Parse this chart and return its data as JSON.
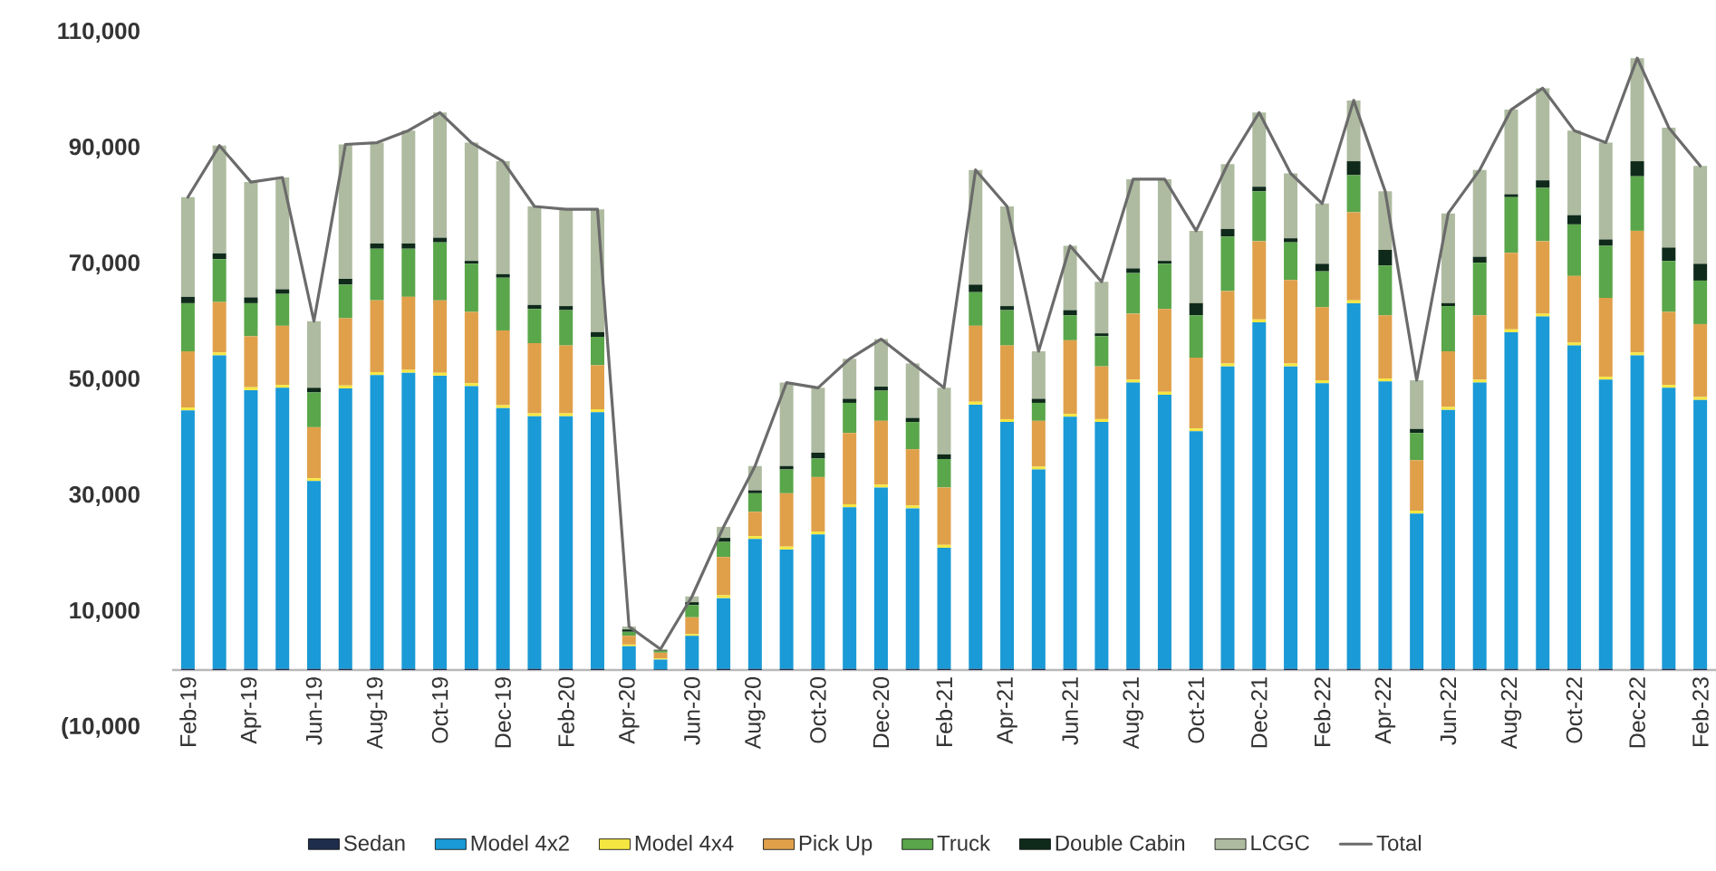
{
  "chart_data": {
    "type": "bar",
    "stacked": true,
    "legend": "bottom",
    "categories": [
      "Feb-19",
      null,
      "Apr-19",
      null,
      "Jun-19",
      null,
      "Aug-19",
      null,
      "Oct-19",
      null,
      "Dec-19",
      null,
      "Feb-20",
      null,
      "Apr-20",
      null,
      "Jun-20",
      null,
      "Aug-20",
      null,
      "Oct-20",
      null,
      "Dec-20",
      null,
      "Feb-21",
      null,
      "Apr-21",
      null,
      "Jun-21",
      null,
      "Aug-21",
      null,
      "Oct-21",
      null,
      "Dec-21",
      null,
      "Feb-22",
      null,
      "Apr-22",
      null,
      "Jun-22",
      null,
      "Aug-22",
      null,
      "Oct-22",
      null,
      "Dec-22",
      null,
      "Feb-23"
    ],
    "ylim": [
      -10000,
      110000
    ],
    "yticks": [
      {
        "value": -10000,
        "label": "(10,000"
      },
      {
        "value": 10000,
        "label": "10,000"
      },
      {
        "value": 30000,
        "label": "30,000"
      },
      {
        "value": 50000,
        "label": "50,000"
      },
      {
        "value": 70000,
        "label": "70,000"
      },
      {
        "value": 90000,
        "label": "90,000"
      },
      {
        "value": 110000,
        "label": "110,000"
      }
    ],
    "series": [
      {
        "name": "Sedan",
        "type": "bar",
        "color": "#1f2d4d",
        "values": [
          200,
          200,
          200,
          200,
          200,
          200,
          200,
          200,
          200,
          200,
          200,
          200,
          200,
          200,
          100,
          100,
          200,
          200,
          200,
          200,
          200,
          200,
          200,
          200,
          200,
          200,
          200,
          200,
          200,
          200,
          200,
          200,
          200,
          200,
          200,
          200,
          200,
          200,
          200,
          200,
          200,
          200,
          200,
          200,
          200,
          200,
          200,
          200,
          200
        ]
      },
      {
        "name": "Model 4x2",
        "type": "bar",
        "color": "#1a9ad6",
        "values": [
          44600,
          54100,
          48100,
          48500,
          32400,
          48400,
          50700,
          51100,
          50600,
          48800,
          45000,
          43600,
          43600,
          44300,
          4000,
          1700,
          5700,
          12200,
          22400,
          20600,
          23200,
          27900,
          31300,
          27700,
          20900,
          45600,
          42600,
          34400,
          43500,
          42600,
          49400,
          47300,
          41000,
          52200,
          59800,
          52200,
          49300,
          63100,
          49600,
          26800,
          44700,
          49400,
          58100,
          60800,
          55800,
          49900,
          54100,
          48500,
          46400
        ]
      },
      {
        "name": "Model 4x4",
        "type": "bar",
        "color": "#f5e642",
        "values": [
          500,
          500,
          500,
          500,
          500,
          500,
          500,
          500,
          500,
          500,
          500,
          500,
          500,
          500,
          300,
          200,
          300,
          500,
          500,
          500,
          500,
          500,
          500,
          500,
          500,
          500,
          500,
          500,
          500,
          500,
          500,
          500,
          500,
          500,
          500,
          500,
          500,
          500,
          500,
          500,
          500,
          500,
          500,
          500,
          500,
          500,
          500,
          500,
          500
        ]
      },
      {
        "name": "Pick Up",
        "type": "bar",
        "color": "#e0a04a",
        "values": [
          9700,
          8700,
          8800,
          10200,
          8800,
          11600,
          12400,
          12600,
          12500,
          12300,
          12900,
          12100,
          11700,
          7600,
          1500,
          1000,
          2900,
          6600,
          4200,
          9200,
          9400,
          12300,
          11000,
          9700,
          9900,
          13100,
          12700,
          7900,
          12700,
          9100,
          11400,
          14300,
          12200,
          12500,
          13500,
          14400,
          12600,
          15200,
          10900,
          8700,
          9600,
          11100,
          13200,
          12500,
          11500,
          13600,
          21000,
          12600,
          12600
        ]
      },
      {
        "name": "Truck",
        "type": "bar",
        "color": "#5aa64a",
        "values": [
          8300,
          7400,
          5700,
          5500,
          6000,
          5800,
          8900,
          8300,
          10000,
          8300,
          9100,
          5900,
          6100,
          4900,
          700,
          300,
          2100,
          2600,
          3200,
          4100,
          3200,
          5200,
          5200,
          4700,
          4900,
          5800,
          6100,
          3100,
          4300,
          5200,
          7000,
          7800,
          7300,
          9400,
          8600,
          6500,
          6200,
          6400,
          8600,
          4700,
          7800,
          9100,
          9600,
          9200,
          8900,
          9000,
          9400,
          8800,
          7500
        ]
      },
      {
        "name": "Double Cabin",
        "type": "bar",
        "color": "#0f2a1a",
        "values": [
          1100,
          1000,
          1000,
          800,
          800,
          1000,
          900,
          900,
          800,
          500,
          600,
          700,
          700,
          800,
          400,
          100,
          500,
          700,
          500,
          600,
          1000,
          700,
          700,
          700,
          800,
          1300,
          700,
          700,
          900,
          500,
          800,
          500,
          2100,
          1300,
          800,
          700,
          1300,
          2400,
          2700,
          700,
          500,
          1000,
          500,
          1300,
          1600,
          1100,
          2600,
          2300,
          2900
        ]
      },
      {
        "name": "LCGC",
        "type": "bar",
        "color": "#aebba0",
        "values": [
          17200,
          18600,
          19900,
          19300,
          11500,
          23200,
          17400,
          19500,
          21600,
          20400,
          19500,
          17000,
          16700,
          21200,
          500,
          200,
          1000,
          1900,
          4200,
          14400,
          11200,
          6900,
          8200,
          9400,
          11500,
          19800,
          17200,
          8200,
          11100,
          8900,
          15400,
          14100,
          12500,
          11200,
          12800,
          11200,
          10400,
          10500,
          10100,
          8400,
          15500,
          15000,
          14600,
          15900,
          14600,
          16700,
          17800,
          20700,
          16900
        ]
      },
      {
        "name": "Total",
        "type": "line",
        "color": "#6b6b6b",
        "values": [
          81600,
          90500,
          84200,
          85000,
          60200,
          90700,
          91000,
          93100,
          96200,
          91000,
          87800,
          80000,
          79500,
          79500,
          7500,
          3600,
          12700,
          24700,
          35200,
          49600,
          48700,
          53700,
          57100,
          52900,
          48700,
          86300,
          80000,
          55000,
          73200,
          67000,
          84700,
          84700,
          75800,
          87300,
          96200,
          85700,
          80500,
          98300,
          82600,
          50000,
          78800,
          86300,
          96700,
          100400,
          93100,
          91000,
          105600,
          93600,
          87000
        ]
      }
    ]
  }
}
